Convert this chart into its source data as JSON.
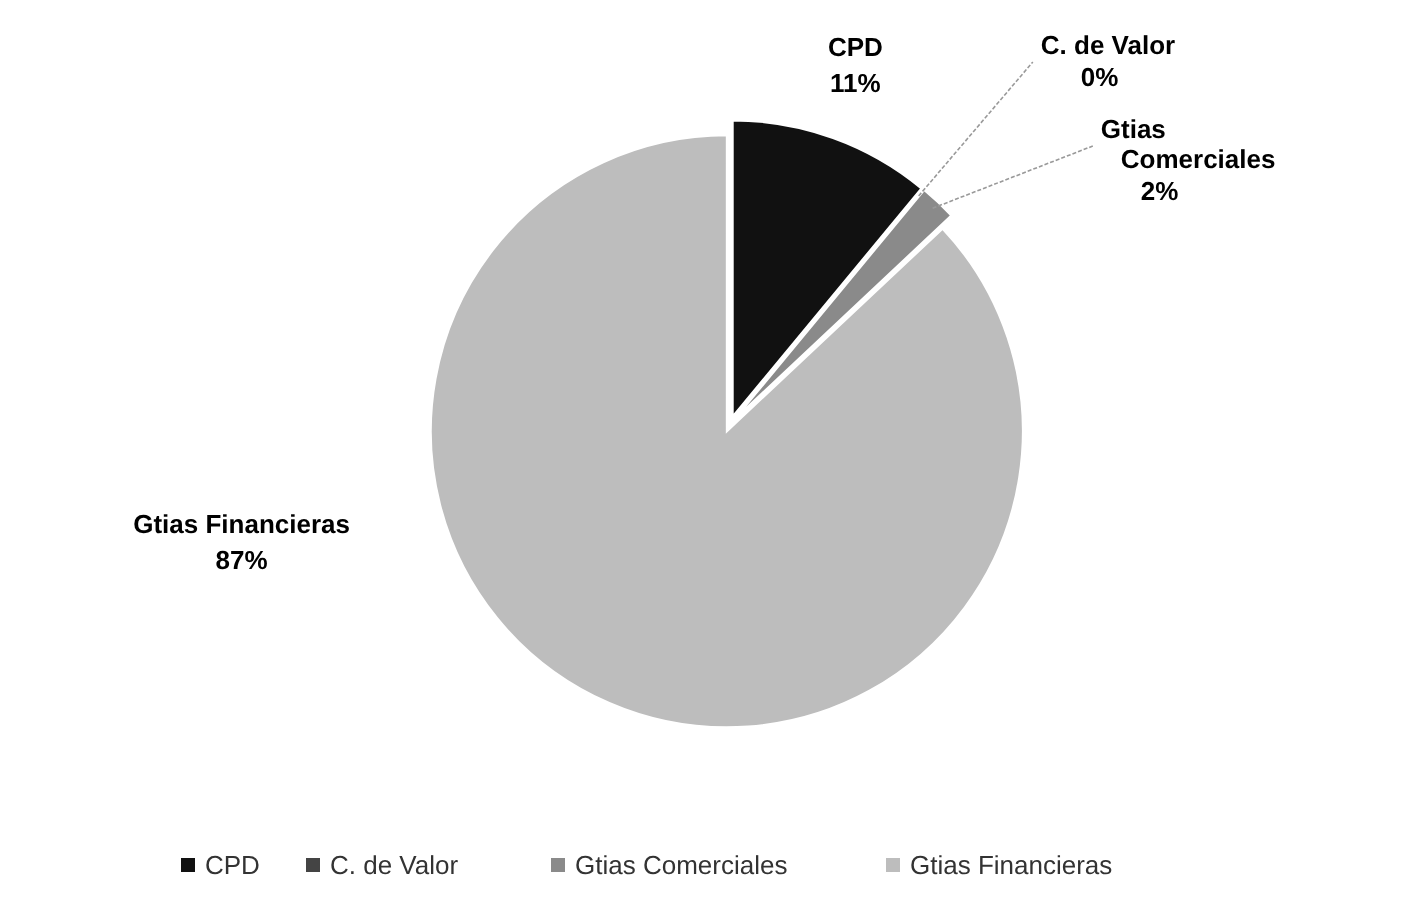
{
  "chart_data": {
    "type": "pie",
    "categories": [
      "CPD",
      "C. de Valor",
      "Gtias Comerciales",
      "Gtias Financieras"
    ],
    "values": [
      11,
      0,
      2,
      87
    ],
    "colors": [
      "#111111",
      "#444444",
      "#8a8a8a",
      "#bdbdbd"
    ],
    "value_labels": [
      "11%",
      "0%",
      "2%",
      "87%"
    ],
    "legend": "bottom"
  }
}
